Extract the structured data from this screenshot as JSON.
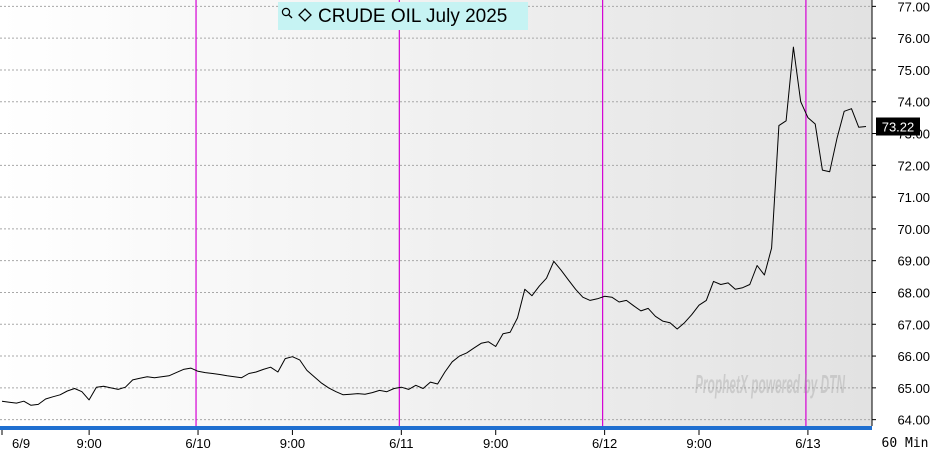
{
  "chart_data": {
    "type": "line",
    "title": "CRUDE OIL July 2025",
    "title_icons": [
      "magnifier-icon",
      "diamond-icon"
    ],
    "x_tick_labels": [
      "6/9",
      "9:00",
      "6/10",
      "9:00",
      "6/11",
      "9:00",
      "6/12",
      "9:00",
      "6/13"
    ],
    "day_boundaries": [
      "6/9",
      "6/10",
      "6/11",
      "6/12",
      "6/13"
    ],
    "ylim": [
      63.8,
      77.2
    ],
    "y_ticks": [
      "64.00",
      "65.00",
      "66.00",
      "67.00",
      "68.00",
      "69.00",
      "70.00",
      "71.00",
      "72.00",
      "73.00",
      "74.00",
      "75.00",
      "76.00",
      "77.00"
    ],
    "grid": true,
    "last_price": "73.22",
    "timeframe": "60 Min",
    "watermark": "ProphetX powered by DTN",
    "series": [
      {
        "values": [
          64.58,
          64.55,
          64.52,
          64.58,
          64.45,
          64.48,
          64.65,
          64.72,
          64.78,
          64.9,
          64.98,
          64.88,
          64.62,
          65.02,
          65.05,
          65.0,
          64.95,
          65.02,
          65.25,
          65.3,
          65.35,
          65.32,
          65.35,
          65.38,
          65.48,
          65.58,
          65.62,
          65.52,
          65.48,
          65.45,
          65.42,
          65.38,
          65.35,
          65.32,
          65.45,
          65.5,
          65.58,
          65.65,
          65.5,
          65.92,
          65.98,
          65.88,
          65.55,
          65.35,
          65.15,
          65.0,
          64.88,
          64.78,
          64.8,
          64.82,
          64.8,
          64.85,
          64.92,
          64.88,
          64.98,
          65.02,
          64.95,
          65.08,
          64.98,
          65.18,
          65.12,
          65.5,
          65.82,
          66.0,
          66.1,
          66.25,
          66.4,
          66.45,
          66.3,
          66.7,
          66.75,
          67.2,
          68.1,
          67.9,
          68.2,
          68.45,
          68.98,
          68.7,
          68.4,
          68.1,
          67.85,
          67.75,
          67.8,
          67.88,
          67.85,
          67.7,
          67.75,
          67.58,
          67.42,
          67.5,
          67.25,
          67.1,
          67.05,
          66.85,
          67.05,
          67.3,
          67.6,
          67.75,
          68.35,
          68.25,
          68.3,
          68.1,
          68.15,
          68.25,
          68.85,
          68.55,
          69.4,
          73.25,
          73.4,
          75.72,
          74.0,
          73.5,
          73.3,
          71.85,
          71.8,
          72.85,
          73.7,
          73.78,
          73.2,
          73.22
        ]
      }
    ]
  }
}
